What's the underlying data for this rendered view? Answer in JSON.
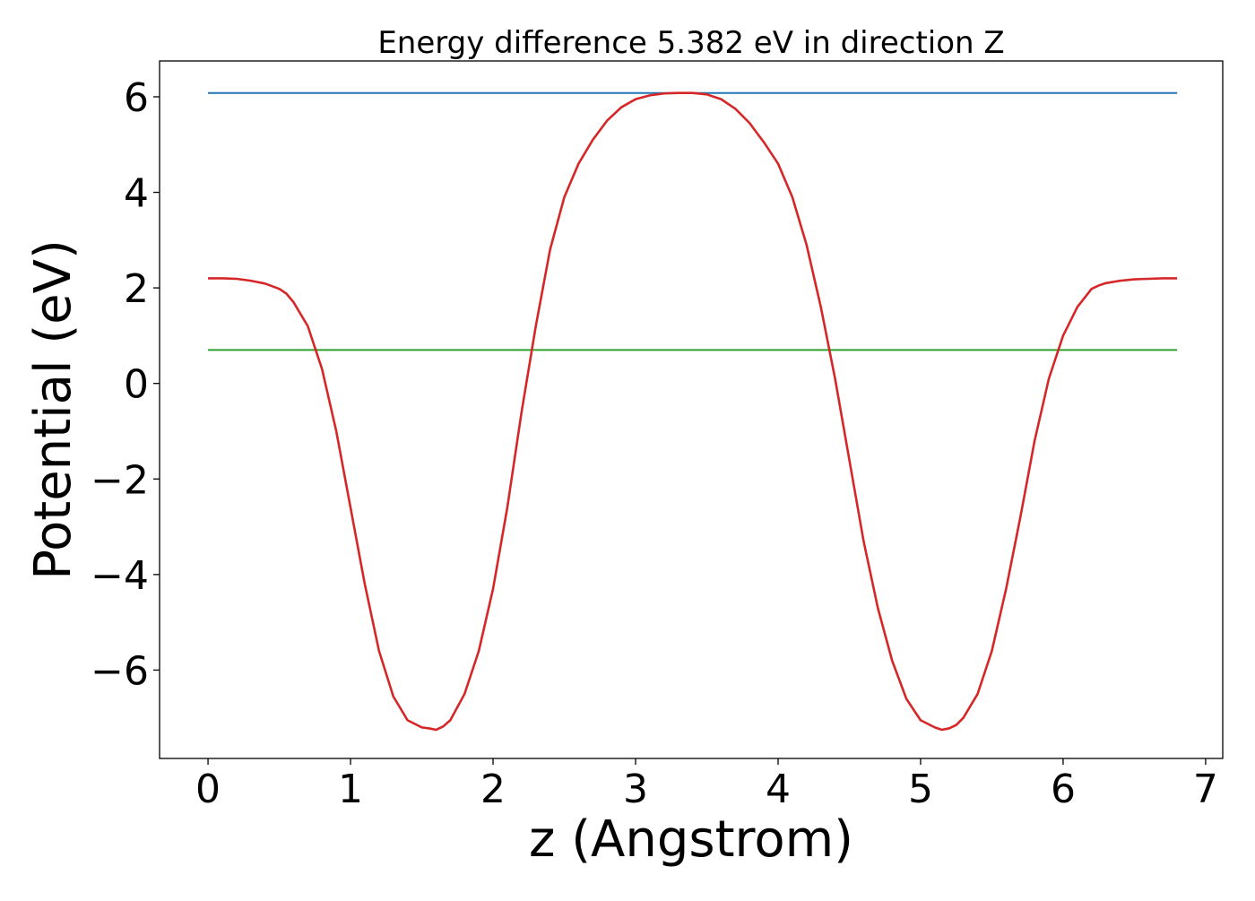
{
  "chart_data": {
    "type": "line",
    "title": "Energy difference 5.382 eV in direction Z",
    "xlabel": "z (Angstrom)",
    "ylabel": "Potential (eV)",
    "xlim": [
      -0.34,
      7.12
    ],
    "ylim": [
      -7.85,
      6.75
    ],
    "x_ticks": [
      0,
      1,
      2,
      3,
      4,
      5,
      6,
      7
    ],
    "x_tick_labels": [
      "0",
      "1",
      "2",
      "3",
      "4",
      "5",
      "6",
      "7"
    ],
    "y_ticks": [
      -6,
      -4,
      -2,
      0,
      2,
      4,
      6
    ],
    "y_tick_labels": [
      "−6",
      "−4",
      "−2",
      "0",
      "2",
      "4",
      "6"
    ],
    "grid": false,
    "legend": "none",
    "series": [
      {
        "color": "#1f77b4",
        "x": [
          0,
          6.8
        ],
        "y": [
          6.08,
          6.08
        ]
      },
      {
        "color": "#2ca02c",
        "x": [
          0,
          6.8
        ],
        "y": [
          0.7,
          0.7
        ]
      },
      {
        "color": "#d62728",
        "x": [
          0,
          0.1,
          0.2,
          0.3,
          0.4,
          0.5,
          0.55,
          0.6,
          0.7,
          0.8,
          0.9,
          1.0,
          1.1,
          1.2,
          1.3,
          1.4,
          1.5,
          1.55,
          1.6,
          1.65,
          1.7,
          1.8,
          1.9,
          2.0,
          2.1,
          2.2,
          2.3,
          2.4,
          2.5,
          2.6,
          2.7,
          2.8,
          2.9,
          3.0,
          3.1,
          3.2,
          3.3,
          3.4,
          3.5,
          3.6,
          3.7,
          3.8,
          3.9,
          4.0,
          4.1,
          4.2,
          4.3,
          4.4,
          4.5,
          4.6,
          4.7,
          4.8,
          4.9,
          5.0,
          5.1,
          5.15,
          5.2,
          5.25,
          5.3,
          5.4,
          5.5,
          5.6,
          5.7,
          5.8,
          5.9,
          6.0,
          6.1,
          6.2,
          6.25,
          6.3,
          6.4,
          6.5,
          6.6,
          6.7,
          6.8
        ],
        "y": [
          2.2,
          2.2,
          2.19,
          2.15,
          2.09,
          1.98,
          1.88,
          1.7,
          1.2,
          0.3,
          -1.0,
          -2.6,
          -4.2,
          -5.6,
          -6.55,
          -7.05,
          -7.2,
          -7.22,
          -7.25,
          -7.18,
          -7.05,
          -6.5,
          -5.6,
          -4.3,
          -2.6,
          -0.6,
          1.2,
          2.8,
          3.9,
          4.6,
          5.1,
          5.5,
          5.78,
          5.95,
          6.03,
          6.07,
          6.08,
          6.08,
          6.05,
          5.95,
          5.75,
          5.45,
          5.05,
          4.6,
          3.9,
          2.9,
          1.6,
          0.1,
          -1.6,
          -3.3,
          -4.7,
          -5.8,
          -6.6,
          -7.05,
          -7.2,
          -7.25,
          -7.22,
          -7.15,
          -7.0,
          -6.5,
          -5.6,
          -4.3,
          -2.8,
          -1.2,
          0.1,
          1.0,
          1.6,
          1.98,
          2.05,
          2.1,
          2.15,
          2.18,
          2.19,
          2.2,
          2.2
        ]
      }
    ]
  }
}
